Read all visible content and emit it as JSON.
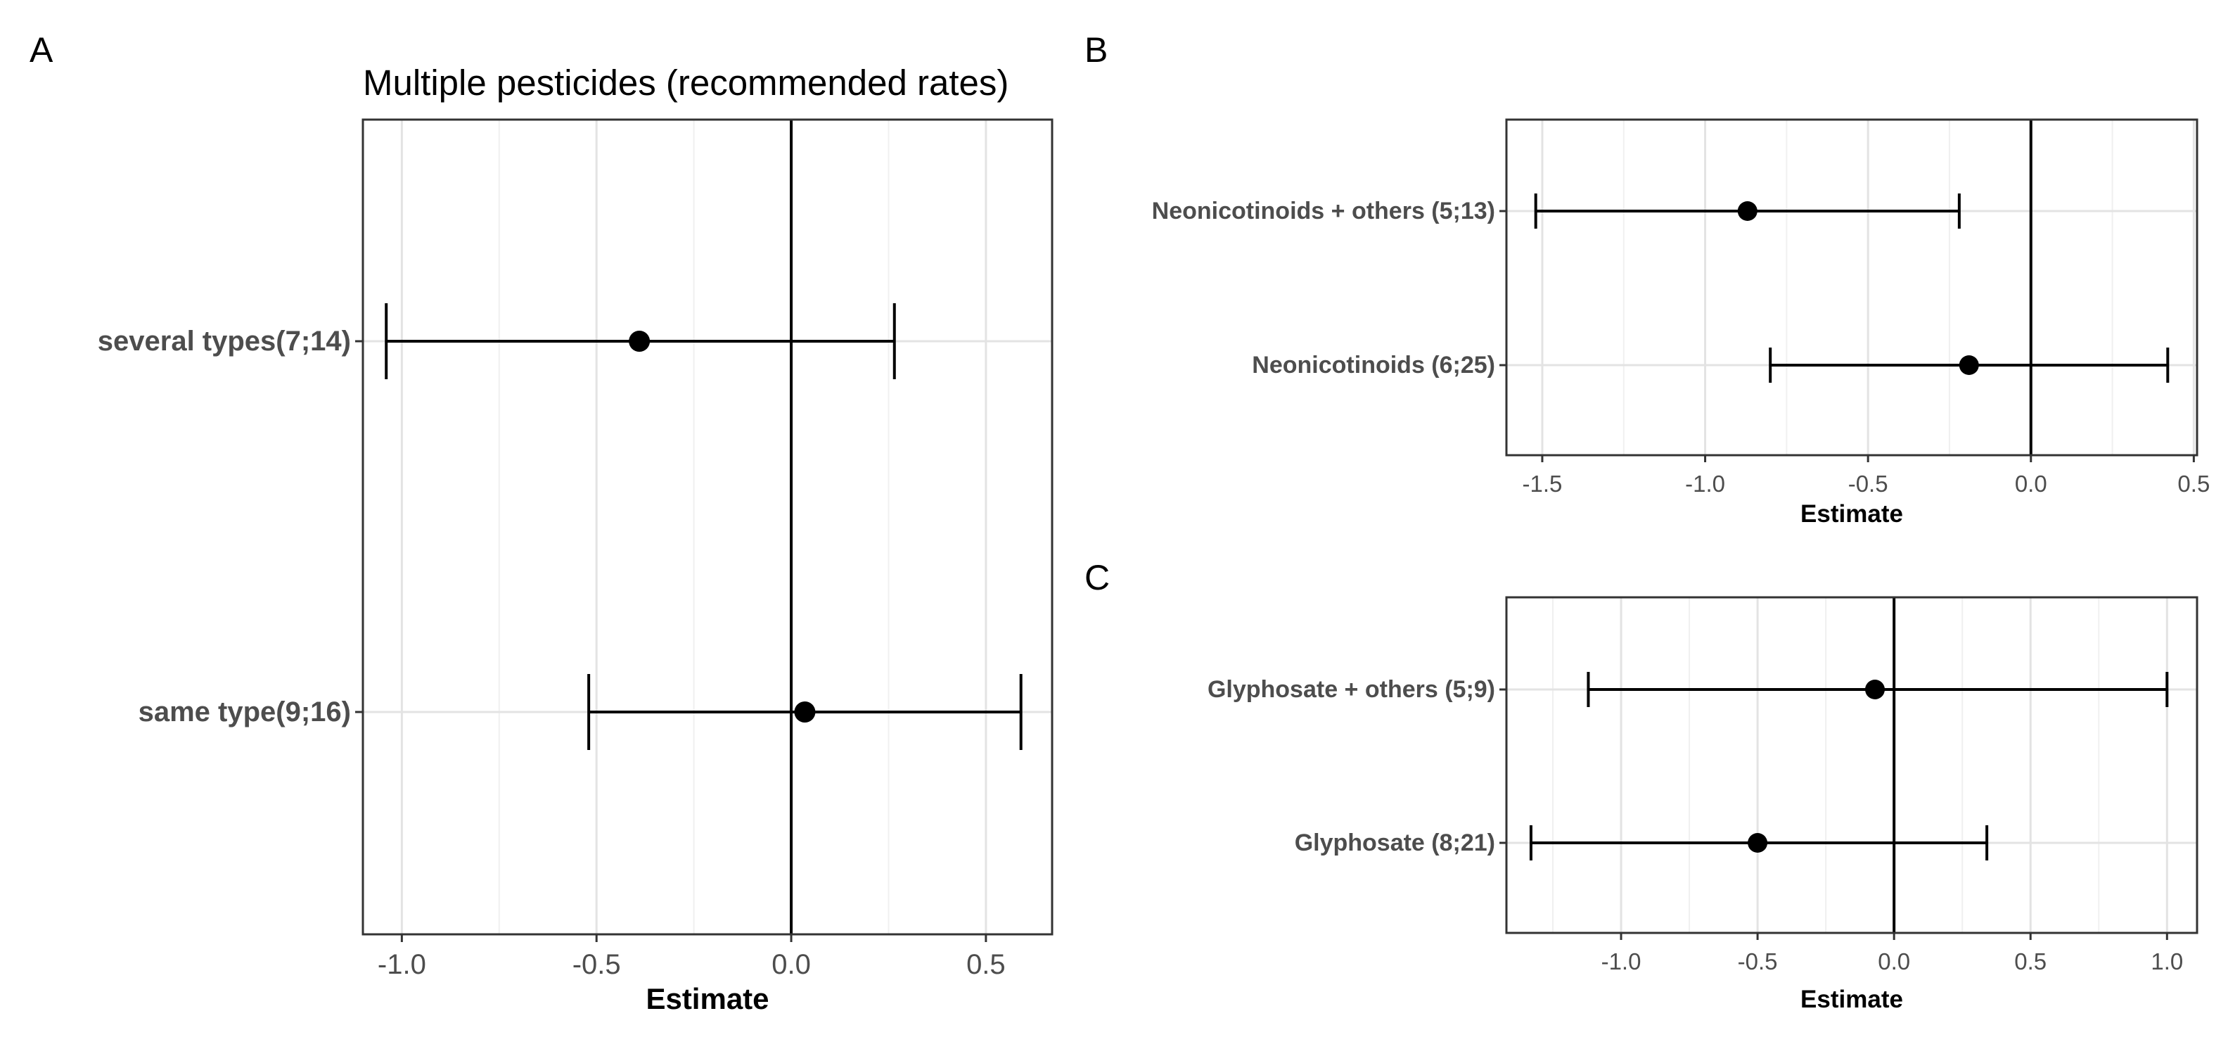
{
  "chart_data": [
    {
      "panel": "A",
      "type": "scatter",
      "title": "Multiple pesticides (recommended rates)",
      "xlabel": "Estimate",
      "ylabel": "",
      "xlim": [
        -1.1,
        0.67
      ],
      "xticks": [
        -1.0,
        -0.5,
        0.0,
        0.5
      ],
      "xtick_labels": [
        "-1.0",
        "-0.5",
        "0.0",
        "0.5"
      ],
      "grid": true,
      "reference_line": 0,
      "categories": [
        "several types(7;14)",
        "same type(9;16)"
      ],
      "estimates": [
        -0.39,
        0.035
      ],
      "ci_low": [
        -1.04,
        -0.52
      ],
      "ci_high": [
        0.265,
        0.59
      ]
    },
    {
      "panel": "B",
      "type": "scatter",
      "title": "",
      "xlabel": "Estimate",
      "ylabel": "",
      "xlim": [
        -1.61,
        0.51
      ],
      "xticks": [
        -1.5,
        -1.0,
        -0.5,
        0.0,
        0.5
      ],
      "xtick_labels": [
        "-1.5",
        "-1.0",
        "-0.5",
        "0.0",
        "0.5"
      ],
      "grid": true,
      "reference_line": 0,
      "categories": [
        "Neonicotinoids + others (5;13)",
        "Neonicotinoids (6;25)"
      ],
      "estimates": [
        -0.87,
        -0.19
      ],
      "ci_low": [
        -1.52,
        -0.8
      ],
      "ci_high": [
        -0.22,
        0.42
      ]
    },
    {
      "panel": "C",
      "type": "scatter",
      "title": "",
      "xlabel": "Estimate",
      "ylabel": "",
      "xlim": [
        -1.42,
        1.11
      ],
      "xticks": [
        -1.0,
        -0.5,
        0.0,
        0.5,
        1.0
      ],
      "xtick_labels": [
        "-1.0",
        "-0.5",
        "0.0",
        "0.5",
        "1.0"
      ],
      "grid": true,
      "reference_line": 0,
      "categories": [
        "Glyphosate + others (5;9)",
        "Glyphosate (8;21)"
      ],
      "estimates": [
        -0.07,
        -0.5
      ],
      "ci_low": [
        -1.12,
        -1.33
      ],
      "ci_high": [
        1.0,
        0.34
      ]
    }
  ]
}
